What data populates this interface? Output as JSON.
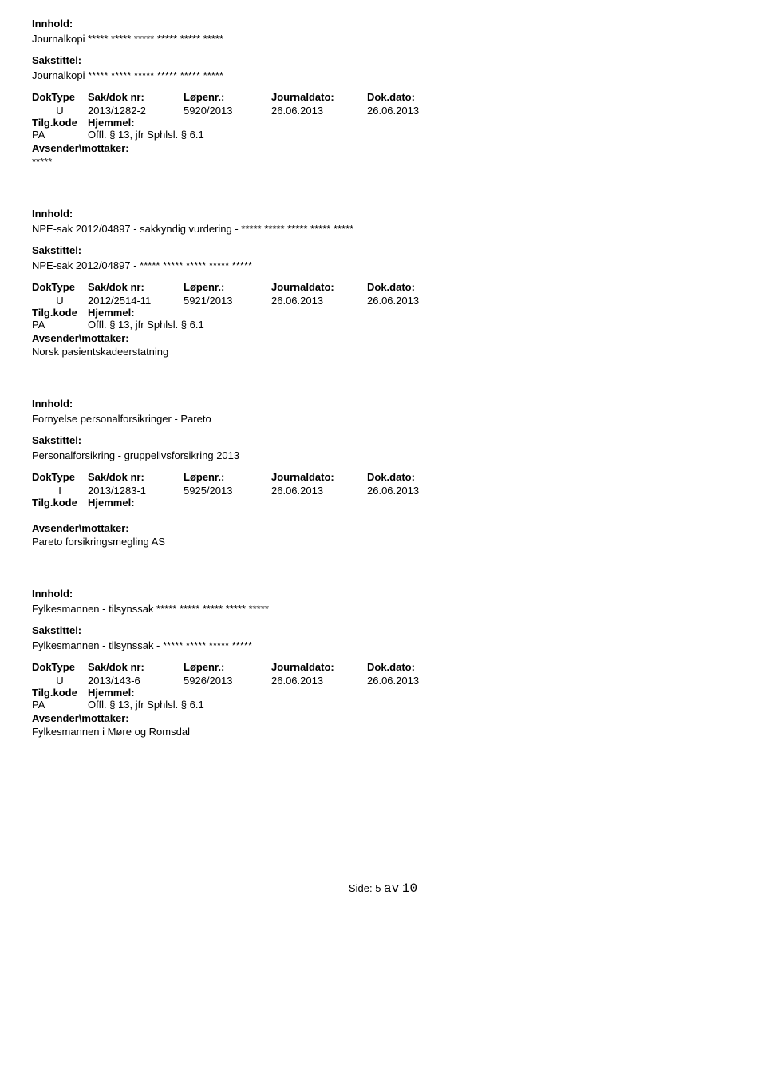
{
  "labels": {
    "innhold": "Innhold:",
    "sakstittel": "Sakstittel:",
    "doktype": "DokType",
    "saknr": "Sak/dok nr:",
    "lopenr": "Løpenr.:",
    "journaldato": "Journaldato:",
    "dokdato": "Dok.dato:",
    "tilgkode": "Tilg.kode",
    "hjemmel": "Hjemmel:",
    "avsender": "Avsender\\mottaker:",
    "side": "Side:",
    "av": "av"
  },
  "entries": [
    {
      "innhold": "Journalkopi ***** ***** ***** ***** ***** *****",
      "sakstittel": "Journalkopi ***** ***** ***** ***** ***** *****",
      "doktype": "U",
      "saknr": "2013/1282-2",
      "lopenr": "5920/2013",
      "journaldato": "26.06.2013",
      "dokdato": "26.06.2013",
      "tilgkode": "PA",
      "hjemmel": "Offl. § 13, jfr Sphlsl. § 6.1",
      "avsender": "*****"
    },
    {
      "innhold": "NPE-sak 2012/04897 - sakkyndig vurdering -   ***** ***** ***** ***** *****",
      "sakstittel": "NPE-sak 2012/04897 - ***** ***** ***** ***** *****",
      "doktype": "U",
      "saknr": "2012/2514-11",
      "lopenr": "5921/2013",
      "journaldato": "26.06.2013",
      "dokdato": "26.06.2013",
      "tilgkode": "PA",
      "hjemmel": "Offl. § 13, jfr Sphlsl. § 6.1",
      "avsender": "Norsk pasientskadeerstatning"
    },
    {
      "innhold": "Fornyelse personalforsikringer - Pareto",
      "sakstittel": "Personalforsikring - gruppelivsforsikring 2013",
      "doktype": "I",
      "saknr": "2013/1283-1",
      "lopenr": "5925/2013",
      "journaldato": "26.06.2013",
      "dokdato": "26.06.2013",
      "tilgkode": "",
      "hjemmel": "",
      "avsender": "Pareto forsikringsmegling AS"
    },
    {
      "innhold": "Fylkesmannen - tilsynssak ***** ***** ***** ***** *****",
      "sakstittel": "Fylkesmannen - tilsynssak - ***** ***** ***** *****",
      "doktype": "U",
      "saknr": "2013/143-6",
      "lopenr": "5926/2013",
      "journaldato": "26.06.2013",
      "dokdato": "26.06.2013",
      "tilgkode": "PA",
      "hjemmel": "Offl. § 13, jfr Sphlsl. § 6.1",
      "avsender": "Fylkesmannen i Møre og Romsdal"
    }
  ],
  "footer": {
    "page_current": "5",
    "page_total": "10"
  }
}
